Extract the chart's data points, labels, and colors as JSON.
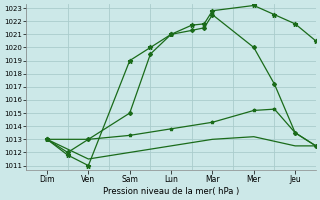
{
  "xlabel": "Pression niveau de la mer( hPa )",
  "bg_color": "#cce8e8",
  "grid_color": "#aacccc",
  "line_color": "#1a6b1a",
  "ylim": [
    1011,
    1023
  ],
  "yticks": [
    1011,
    1012,
    1013,
    1014,
    1015,
    1016,
    1017,
    1018,
    1019,
    1020,
    1021,
    1022,
    1023
  ],
  "days": [
    "Dim",
    "Ven",
    "Sam",
    "Lun",
    "Mar",
    "Mer",
    "Jeu"
  ],
  "day_x": [
    0.5,
    1.5,
    2.5,
    3.5,
    4.5,
    5.5,
    6.5
  ],
  "vlines_x": [
    0,
    1,
    2,
    3,
    4,
    5,
    6,
    7
  ],
  "series1_x": [
    0.5,
    1.0,
    1.5,
    2.5,
    3.0,
    3.5,
    4.0,
    4.3,
    4.5,
    5.5,
    6.0,
    6.5,
    7.0
  ],
  "series1_y": [
    1013.0,
    1011.8,
    1011.0,
    1019.0,
    1020.0,
    1021.0,
    1021.7,
    1021.8,
    1022.8,
    1023.2,
    1022.5,
    1021.8,
    1020.5
  ],
  "series2_x": [
    0.5,
    1.0,
    1.5,
    2.5,
    3.0,
    3.5,
    4.0,
    4.3,
    4.5,
    5.5,
    6.0,
    6.5,
    7.0
  ],
  "series2_y": [
    1013.0,
    1012.0,
    1013.0,
    1015.0,
    1019.5,
    1021.0,
    1021.3,
    1021.5,
    1022.5,
    1020.0,
    1017.2,
    1013.5,
    1012.5
  ],
  "series3_x": [
    0.5,
    1.5,
    2.5,
    3.5,
    4.5,
    5.5,
    6.0,
    6.5,
    7.0
  ],
  "series3_y": [
    1013.0,
    1013.0,
    1013.3,
    1013.8,
    1014.3,
    1015.2,
    1015.3,
    1013.5,
    1012.5
  ],
  "series4_x": [
    0.5,
    1.5,
    2.5,
    3.5,
    4.5,
    5.5,
    6.5,
    7.0
  ],
  "series4_y": [
    1013.0,
    1011.5,
    1012.0,
    1012.5,
    1013.0,
    1013.2,
    1012.5,
    1012.5
  ]
}
